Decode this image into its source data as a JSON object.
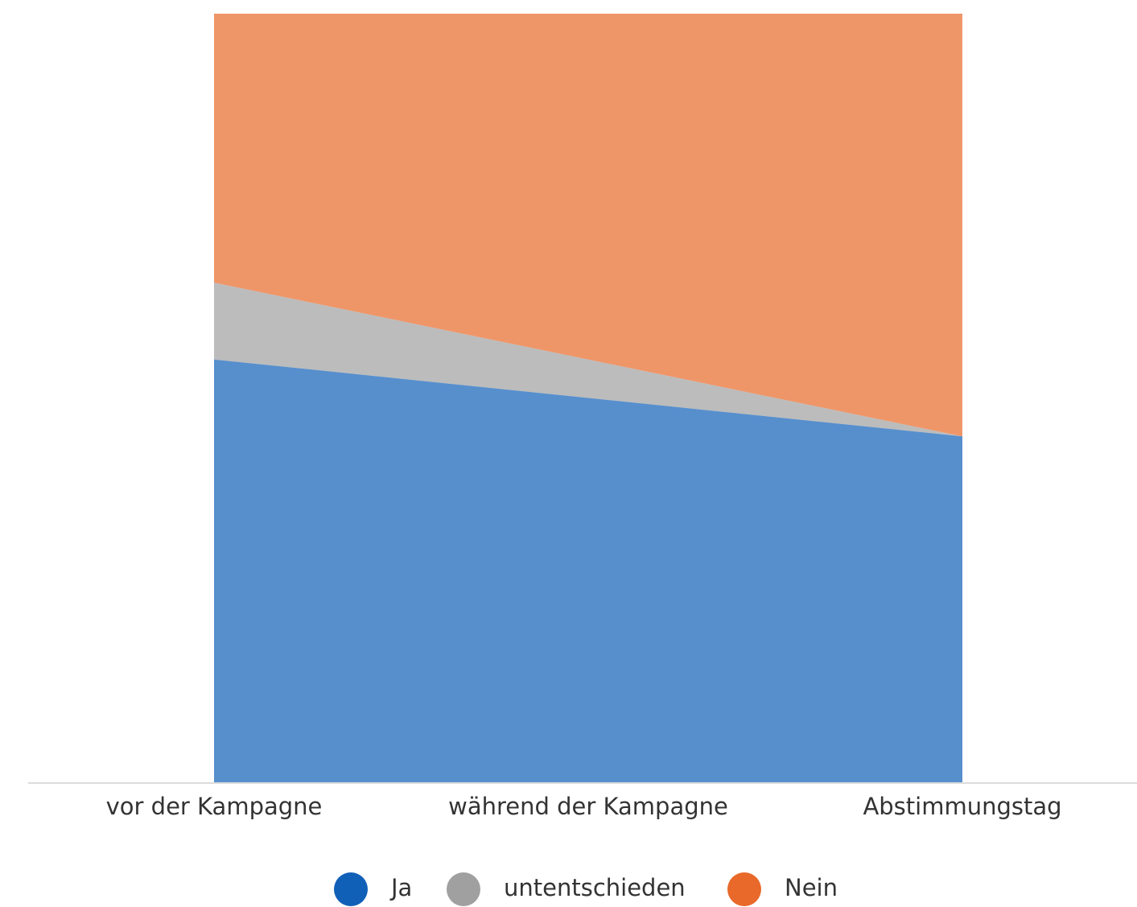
{
  "chart_data": {
    "type": "stacked_area",
    "categories": [
      "vor der Kampagne",
      "während der Kampagne",
      "Abstimmungstag"
    ],
    "series": [
      {
        "name": "Ja",
        "color": "#1060b8",
        "values": [
          55,
          50,
          45
        ]
      },
      {
        "name": "untentschieden",
        "color": "#a0a0a0",
        "values": [
          10,
          5,
          0
        ]
      },
      {
        "name": "Nein",
        "color": "#e8692a",
        "values": [
          35,
          45,
          55
        ]
      }
    ],
    "ylim": [
      0,
      100
    ]
  }
}
